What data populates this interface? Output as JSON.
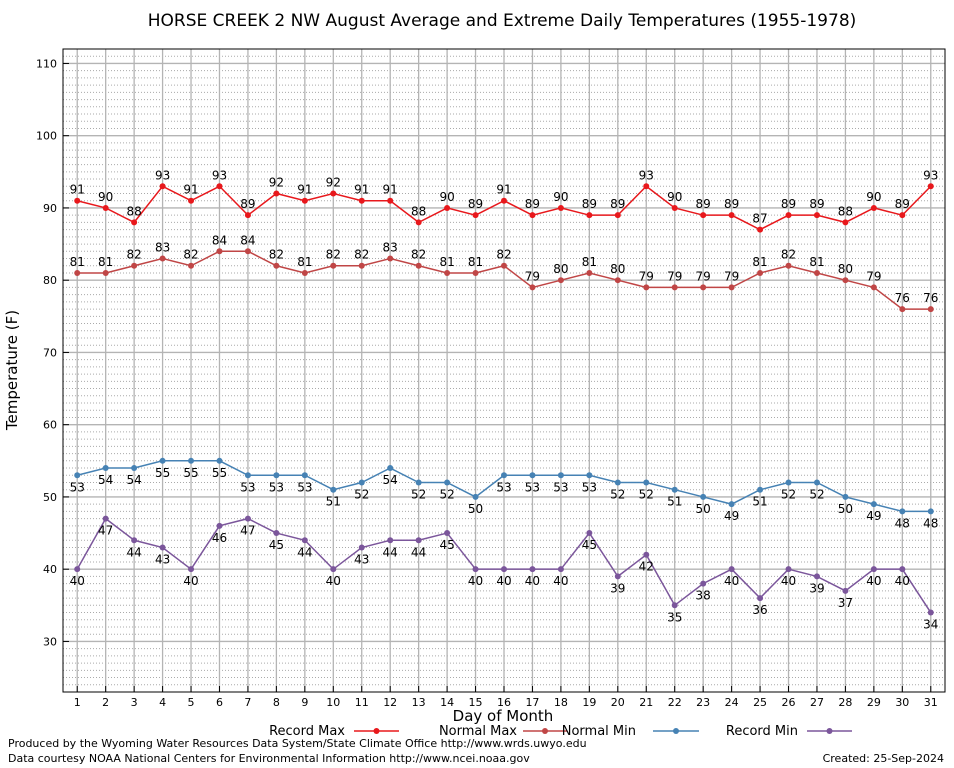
{
  "chart_data": {
    "type": "line",
    "title": "HORSE CREEK 2 NW August Average and Extreme Daily Temperatures (1955-1978)",
    "xlabel": "Day of Month",
    "ylabel": "Temperature (F)",
    "ylim": [
      23,
      112
    ],
    "yticks": [
      30,
      40,
      50,
      60,
      70,
      80,
      90,
      100,
      110
    ],
    "grid": true,
    "legend_position": "bottom",
    "x": [
      1,
      2,
      3,
      4,
      5,
      6,
      7,
      8,
      9,
      10,
      11,
      12,
      13,
      14,
      15,
      16,
      17,
      18,
      19,
      20,
      21,
      22,
      23,
      24,
      25,
      26,
      27,
      28,
      29,
      30,
      31
    ],
    "series": [
      {
        "name": "Record Max",
        "color": "#e8181c",
        "values": [
          91,
          90,
          88,
          93,
          91,
          93,
          89,
          92,
          91,
          92,
          91,
          91,
          88,
          90,
          89,
          91,
          89,
          90,
          89,
          89,
          93,
          90,
          89,
          89,
          87,
          89,
          89,
          88,
          90,
          89,
          93
        ]
      },
      {
        "name": "Normal Max",
        "color": "#c04646",
        "values": [
          81,
          81,
          82,
          83,
          82,
          84,
          84,
          82,
          81,
          82,
          82,
          83,
          82,
          81,
          81,
          82,
          79,
          80,
          81,
          80,
          79,
          79,
          79,
          79,
          81,
          82,
          81,
          80,
          79,
          76,
          76
        ]
      },
      {
        "name": "Normal Min",
        "color": "#4682b4",
        "values": [
          53,
          54,
          54,
          55,
          55,
          55,
          53,
          53,
          53,
          51,
          52,
          54,
          52,
          52,
          50,
          53,
          53,
          53,
          53,
          52,
          52,
          51,
          50,
          49,
          51,
          52,
          52,
          50,
          49,
          48,
          48
        ]
      },
      {
        "name": "Record Min",
        "color": "#7b569b",
        "values": [
          40,
          47,
          44,
          43,
          40,
          46,
          47,
          45,
          44,
          40,
          43,
          44,
          44,
          45,
          40,
          40,
          40,
          40,
          45,
          39,
          42,
          35,
          38,
          40,
          36,
          40,
          39,
          37,
          40,
          40,
          34
        ]
      }
    ]
  },
  "footer": {
    "credit_1": "Produced by the Wyoming Water Resources Data System/State Climate Office http://www.wrds.uwyo.edu",
    "credit_2": "Data courtesy NOAA National Centers for Environmental Information http://www.ncei.noaa.gov",
    "created": "Created:  25-Sep-2024"
  }
}
